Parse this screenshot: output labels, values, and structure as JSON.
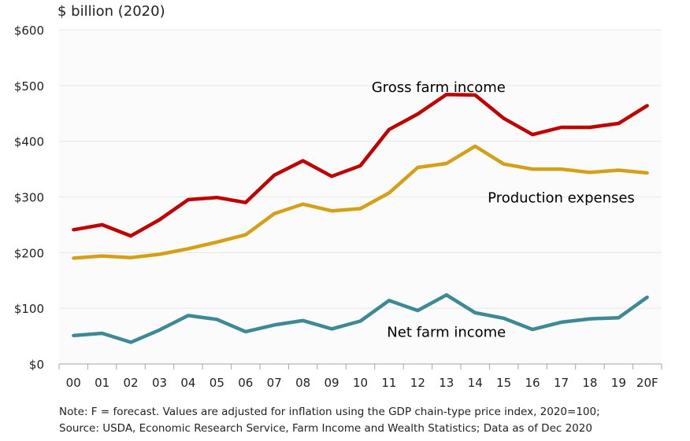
{
  "colors": {
    "gross": "#c00000",
    "expenses": "#d4a017",
    "net": "#3d8a96",
    "plot_bg": "#fbfbfb",
    "grid": "#ffffff",
    "axis": "#a6a6a6"
  },
  "chart_data": {
    "type": "line",
    "title": "",
    "units_label": "$ billion (2020)",
    "xlabel": "",
    "ylabel": "$ billion (2020)",
    "categories": [
      "00",
      "01",
      "02",
      "03",
      "04",
      "05",
      "06",
      "07",
      "08",
      "09",
      "10",
      "11",
      "12",
      "13",
      "14",
      "15",
      "16",
      "17",
      "18",
      "19",
      "20F"
    ],
    "ylim": [
      0,
      600
    ],
    "yticks": [
      0,
      100,
      200,
      300,
      400,
      500,
      600
    ],
    "ytick_labels": [
      "$0",
      "$100",
      "$200",
      "$300",
      "$400",
      "$500",
      "$600"
    ],
    "grid": true,
    "series": [
      {
        "name": "Gross farm income",
        "color_key": "gross",
        "values": [
          241,
          250,
          230,
          259,
          295,
          299,
          290,
          339,
          365,
          337,
          356,
          421,
          449,
          484,
          483,
          441,
          412,
          425,
          425,
          432,
          464
        ],
        "label_anchor_index": 13,
        "label_dy": 13
      },
      {
        "name": "Production expenses",
        "color_key": "expenses",
        "values": [
          190,
          194,
          191,
          197,
          207,
          219,
          232,
          270,
          287,
          275,
          279,
          307,
          353,
          360,
          391,
          359,
          350,
          350,
          344,
          348,
          343
        ],
        "label_anchor_index": 17,
        "label_dy": -34
      },
      {
        "name": "Net farm income",
        "color_key": "net",
        "values": [
          51,
          55,
          39,
          61,
          87,
          80,
          58,
          70,
          78,
          63,
          77,
          114,
          96,
          124,
          92,
          82,
          62,
          75,
          81,
          83,
          120
        ]
      }
    ]
  },
  "note": {
    "line1": "Note: F = forecast. Values are adjusted for inflation using the GDP chain-type price index, 2020=100;",
    "line2": "Source: USDA, Economic Research Service, Farm Income and Wealth Statistics; Data as of Dec 2020"
  }
}
